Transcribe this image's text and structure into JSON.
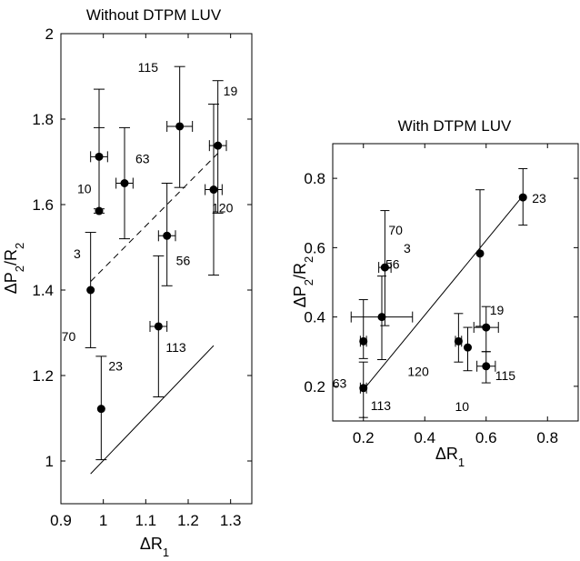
{
  "chart_data": [
    {
      "type": "scatter",
      "title": "Without DTPM LUV",
      "xlabel_main": "ΔR",
      "xlabel_sub": "1",
      "ylabel": "ΔP2/R2",
      "xlim": [
        0.9,
        1.35
      ],
      "ylim": [
        0.9,
        2.0
      ],
      "xticks": [
        0.9,
        1.0,
        1.1,
        1.2,
        1.3
      ],
      "xtick_labels": [
        "0.9",
        "1",
        "1.1",
        "1.2",
        "1.3"
      ],
      "yticks": [
        1.0,
        1.2,
        1.4,
        1.6,
        1.8,
        2.0
      ],
      "ytick_labels": [
        "1",
        "1.2",
        "1.4",
        "1.6",
        "1.8",
        "2"
      ],
      "points": [
        {
          "label": "10",
          "x": 0.99,
          "y": 1.712,
          "xerr": 0.02,
          "ylow": 1.59,
          "yhigh": 1.87
        },
        {
          "label": "3",
          "x": 0.99,
          "y": 1.585,
          "xerr": 0.0,
          "ylow": 1.58,
          "yhigh": 1.78
        },
        {
          "label": "63",
          "x": 1.05,
          "y": 1.65,
          "xerr": 0.02,
          "ylow": 1.52,
          "yhigh": 1.78
        },
        {
          "label": "115",
          "x": 1.18,
          "y": 1.783,
          "xerr": 0.03,
          "ylow": 1.64,
          "yhigh": 1.923
        },
        {
          "label": "19",
          "x": 1.27,
          "y": 1.738,
          "xerr": 0.02,
          "ylow": 1.58,
          "yhigh": 1.89
        },
        {
          "label": "120",
          "x": 1.26,
          "y": 1.635,
          "xerr": 0.02,
          "ylow": 1.435,
          "yhigh": 1.835
        },
        {
          "label": "56",
          "x": 1.15,
          "y": 1.527,
          "xerr": 0.02,
          "ylow": 1.41,
          "yhigh": 1.65
        },
        {
          "label": "70",
          "x": 0.97,
          "y": 1.4,
          "xerr": 0.0,
          "ylow": 1.265,
          "yhigh": 1.535
        },
        {
          "label": "113",
          "x": 1.13,
          "y": 1.315,
          "xerr": 0.02,
          "ylow": 1.15,
          "yhigh": 1.48
        },
        {
          "label": "23",
          "x": 0.995,
          "y": 1.122,
          "xerr": 0.0,
          "ylow": 1.003,
          "yhigh": 1.245
        }
      ],
      "lines": [
        {
          "style": "dashed",
          "x": [
            0.97,
            1.27
          ],
          "y": [
            1.42,
            1.72
          ]
        },
        {
          "style": "solid",
          "x": [
            0.97,
            1.26
          ],
          "y": [
            0.97,
            1.27
          ]
        }
      ]
    },
    {
      "type": "scatter",
      "title": "With DTPM LUV",
      "xlabel_main": "ΔR",
      "xlabel_sub": "1",
      "ylabel": "ΔP2/R2",
      "xlim": [
        0.1,
        0.9
      ],
      "ylim": [
        0.1,
        0.9
      ],
      "xticks": [
        0.2,
        0.4,
        0.6,
        0.8
      ],
      "xtick_labels": [
        "0.2",
        "0.4",
        "0.6",
        "0.8"
      ],
      "yticks": [
        0.2,
        0.4,
        0.6,
        0.8
      ],
      "ytick_labels": [
        "0.2",
        "0.4",
        "0.6",
        "0.8"
      ],
      "points": [
        {
          "label": "23",
          "x": 0.72,
          "y": 0.745,
          "xerr": 0.0,
          "ylow": 0.665,
          "yhigh": 0.828
        },
        {
          "label": "3",
          "x": 0.58,
          "y": 0.583,
          "xerr": 0.0,
          "ylow": 0.373,
          "yhigh": 0.767
        },
        {
          "label": "70",
          "x": 0.27,
          "y": 0.543,
          "xerr": 0.02,
          "ylow": 0.375,
          "yhigh": 0.707
        },
        {
          "label": "56",
          "x": 0.26,
          "y": 0.4,
          "xerr": 0.1,
          "ylow": 0.277,
          "yhigh": 0.518
        },
        {
          "label": "19",
          "x": 0.6,
          "y": 0.37,
          "xerr": 0.04,
          "ylow": 0.3,
          "yhigh": 0.43
        },
        {
          "label": "63",
          "x": 0.2,
          "y": 0.33,
          "xerr": 0.01,
          "ylow": 0.28,
          "yhigh": 0.45
        },
        {
          "label": "120",
          "x": 0.51,
          "y": 0.33,
          "xerr": 0.01,
          "ylow": 0.27,
          "yhigh": 0.41
        },
        {
          "label": "10",
          "x": 0.54,
          "y": 0.312,
          "xerr": 0.0,
          "ylow": 0.245,
          "yhigh": 0.37
        },
        {
          "label": "115",
          "x": 0.6,
          "y": 0.258,
          "xerr": 0.03,
          "ylow": 0.21,
          "yhigh": 0.3
        },
        {
          "label": "113",
          "x": 0.2,
          "y": 0.195,
          "xerr": 0.01,
          "ylow": 0.11,
          "yhigh": 0.27
        }
      ],
      "lines": [
        {
          "style": "solid",
          "x": [
            0.2,
            0.72
          ],
          "y": [
            0.19,
            0.75
          ]
        }
      ]
    }
  ]
}
